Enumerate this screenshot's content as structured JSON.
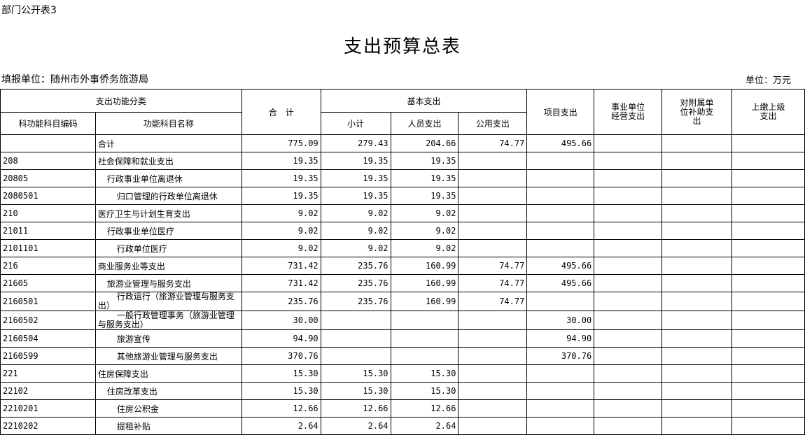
{
  "doc_tag": "部门公开表3",
  "title": "支出预算总表",
  "org_label": "填报单位：随州市外事侨务旅游局",
  "unit_label": "单位：万元",
  "headers": {
    "func_class": "支出功能分类",
    "total": "合　计",
    "basic": "基本支出",
    "project": "项目支出",
    "biz_unit": "事业单位经营支出",
    "subsidy": "对附属单位补助支出",
    "remit": "上缴上级支出",
    "code": "科功能科目编码",
    "name": "功能科目名称",
    "subtotal": "小计",
    "personnel": "人员支出",
    "public": "公用支出"
  },
  "rows": [
    {
      "code": "",
      "name": "合计",
      "level": 0,
      "total": "775.09",
      "subtotal": "279.43",
      "personnel": "204.66",
      "public": "74.77",
      "project": "495.66"
    },
    {
      "code": "208",
      "name": "社会保障和就业支出",
      "level": 0,
      "total": "19.35",
      "subtotal": "19.35",
      "personnel": "19.35",
      "public": "",
      "project": ""
    },
    {
      "code": "20805",
      "name": "行政事业单位离退休",
      "level": 1,
      "total": "19.35",
      "subtotal": "19.35",
      "personnel": "19.35",
      "public": "",
      "project": ""
    },
    {
      "code": "2080501",
      "name": "归口管理的行政单位离退休",
      "level": 2,
      "total": "19.35",
      "subtotal": "19.35",
      "personnel": "19.35",
      "public": "",
      "project": ""
    },
    {
      "code": "210",
      "name": "医疗卫生与计划生育支出",
      "level": 0,
      "total": "9.02",
      "subtotal": "9.02",
      "personnel": "9.02",
      "public": "",
      "project": ""
    },
    {
      "code": "21011",
      "name": "行政事业单位医疗",
      "level": 1,
      "total": "9.02",
      "subtotal": "9.02",
      "personnel": "9.02",
      "public": "",
      "project": ""
    },
    {
      "code": "2101101",
      "name": "行政单位医疗",
      "level": 2,
      "total": "9.02",
      "subtotal": "9.02",
      "personnel": "9.02",
      "public": "",
      "project": ""
    },
    {
      "code": "216",
      "name": "商业服务业等支出",
      "level": 0,
      "total": "731.42",
      "subtotal": "235.76",
      "personnel": "160.99",
      "public": "74.77",
      "project": "495.66"
    },
    {
      "code": "21605",
      "name": "旅游业管理与服务支出",
      "level": 1,
      "total": "731.42",
      "subtotal": "235.76",
      "personnel": "160.99",
      "public": "74.77",
      "project": "495.66"
    },
    {
      "code": "2160501",
      "name": "行政运行（旅游业管理与服务支出）",
      "level": 2,
      "wrap": true,
      "total": "235.76",
      "subtotal": "235.76",
      "personnel": "160.99",
      "public": "74.77",
      "project": ""
    },
    {
      "code": "2160502",
      "name": "一般行政管理事务（旅游业管理与服务支出）",
      "level": 2,
      "wrap": true,
      "total": "30.00",
      "subtotal": "",
      "personnel": "",
      "public": "",
      "project": "30.00"
    },
    {
      "code": "2160504",
      "name": "旅游宣传",
      "level": 2,
      "total": "94.90",
      "subtotal": "",
      "personnel": "",
      "public": "",
      "project": "94.90"
    },
    {
      "code": "2160599",
      "name": "其他旅游业管理与服务支出",
      "level": 2,
      "total": "370.76",
      "subtotal": "",
      "personnel": "",
      "public": "",
      "project": "370.76"
    },
    {
      "code": "221",
      "name": "住房保障支出",
      "level": 0,
      "total": "15.30",
      "subtotal": "15.30",
      "personnel": "15.30",
      "public": "",
      "project": ""
    },
    {
      "code": "22102",
      "name": "住房改革支出",
      "level": 1,
      "total": "15.30",
      "subtotal": "15.30",
      "personnel": "15.30",
      "public": "",
      "project": ""
    },
    {
      "code": "2210201",
      "name": "住房公积金",
      "level": 2,
      "total": "12.66",
      "subtotal": "12.66",
      "personnel": "12.66",
      "public": "",
      "project": ""
    },
    {
      "code": "2210202",
      "name": "提租补贴",
      "level": 2,
      "total": "2.64",
      "subtotal": "2.64",
      "personnel": "2.64",
      "public": "",
      "project": ""
    }
  ]
}
